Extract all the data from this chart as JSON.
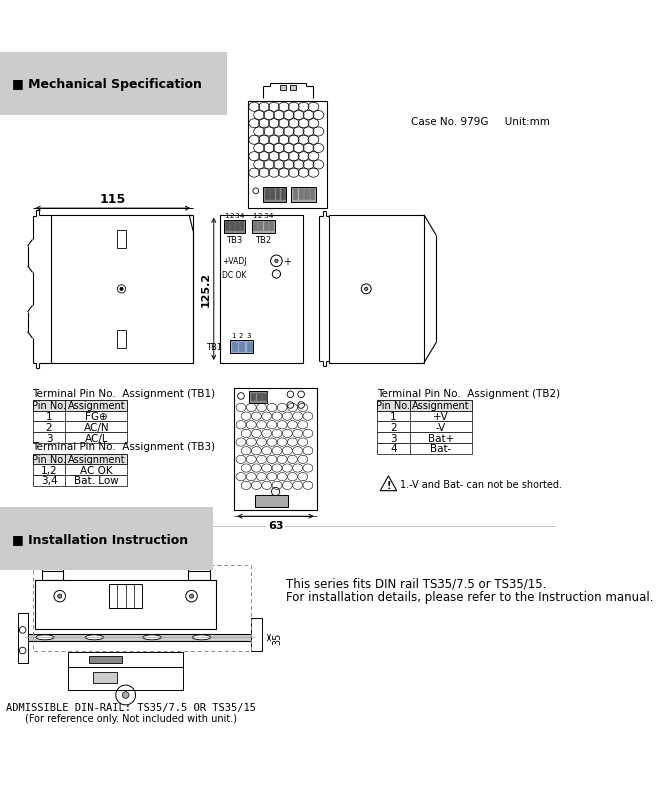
{
  "title_mech": "■ Mechanical Specification",
  "title_install": "■ Installation Instruction",
  "case_info": "Case No. 979G     Unit:mm",
  "dim_115": "115",
  "dim_125": "125.2",
  "dim_63": "63",
  "dim_35": "35",
  "tb1_title": "Terminal Pin No.  Assignment (TB1)",
  "tb1_headers": [
    "Pin No.",
    "Assignment"
  ],
  "tb1_rows": [
    [
      "1",
      "FG⊕"
    ],
    [
      "2",
      "AC/N"
    ],
    [
      "3",
      "AC/L"
    ]
  ],
  "tb2_title": "Terminal Pin No.  Assignment (TB2)",
  "tb2_headers": [
    "Pin No.",
    "Assignment"
  ],
  "tb2_rows": [
    [
      "1",
      "+V"
    ],
    [
      "2",
      "-V"
    ],
    [
      "3",
      "Bat+"
    ],
    [
      "4",
      "Bat-"
    ]
  ],
  "tb3_title": "Terminal Pin No.  Assignment (TB3)",
  "tb3_headers": [
    "Pin No.",
    "Assignment"
  ],
  "tb3_rows": [
    [
      "1,2",
      "AC OK"
    ],
    [
      "3,4",
      "Bat. Low"
    ]
  ],
  "warning_text": "1.-V and Bat- can not be shorted.",
  "install_line1": "This series fits DIN rail TS35/7.5 or TS35/15.",
  "install_line2": "For installation details, please refer to the Instruction manual.",
  "din_rail_text": "ADMISSIBLE DIN-RAIL: TS35/7.5 OR TS35/15",
  "din_rail_note": "(For reference only. Not included with unit.)",
  "bg_color": "#ffffff",
  "line_color": "#000000"
}
